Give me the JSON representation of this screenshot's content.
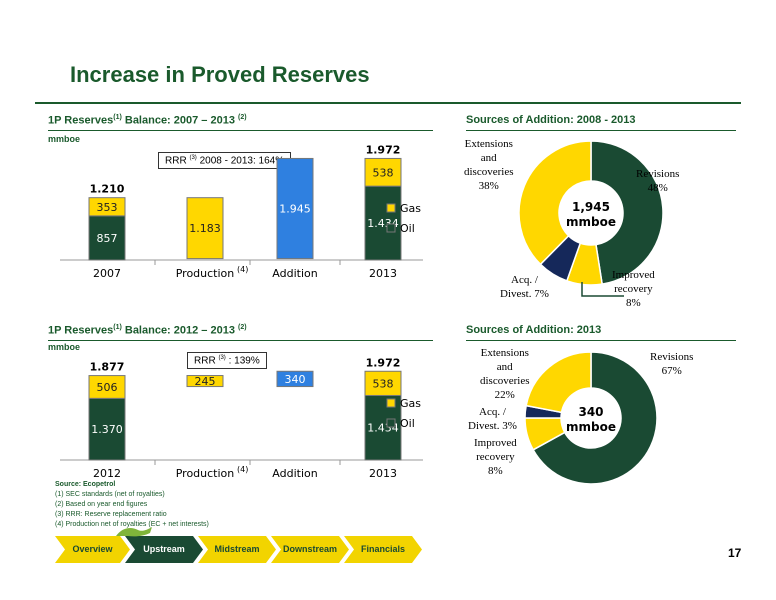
{
  "page": {
    "title": "Increase in Proved Reserves",
    "page_number": "17"
  },
  "section1": {
    "title": "1P Reserves",
    "title_sup1": "(1)",
    "title_mid": " Balance: 2007 – 2013 ",
    "title_sup2": "(2)",
    "unit": "mmboe",
    "rrr_prefix": "RRR",
    "rrr_sup": "(3)",
    "rrr_suffix": " 2008 - 2013: 164%"
  },
  "section2": {
    "title": "1P Reserves",
    "title_sup1": "(1)",
    "title_mid": " Balance: 2012 – 2013 ",
    "title_sup2": "(2)",
    "unit": "mmboe",
    "rrr_prefix": "RRR",
    "rrr_sup": "(3)",
    "rrr_suffix": " : 139%"
  },
  "section3": {
    "title": "Sources of Addition: 2008 - 2013"
  },
  "section4": {
    "title": "Sources of Addition: 2013"
  },
  "notes": {
    "source": "Source: Ecopetrol",
    "items": [
      "(1)    SEC standards (net of royalties)",
      "(2)    Based on year end figures",
      "(3)    RRR: Reserve replacement ratio",
      "(4)    Production net of royalties (EC + net interests)"
    ]
  },
  "nav": {
    "items": [
      "Overview",
      "Upstream",
      "Midstream",
      "Downstream",
      "Financials"
    ],
    "active": "Upstream"
  },
  "colors": {
    "oil": "#1a4a33",
    "gas": "#ffd700",
    "addition": "#2f80e0",
    "acq": "#15285a",
    "title_green": "#1a5a2c",
    "nav_inactive": "#f2d400",
    "nav_active": "#1a4a33"
  },
  "chart_data": [
    {
      "type": "bar",
      "title": "1P Reserves Balance: 2007 – 2013",
      "ylabel": "mmboe",
      "categories": [
        "2007",
        "Production",
        "Addition",
        "2013"
      ],
      "category_sup": [
        "",
        "(4)",
        "",
        ""
      ],
      "series": [
        {
          "name": "Oil",
          "values": [
            857,
            null,
            null,
            1434
          ],
          "labels": [
            "857",
            "",
            "",
            "1.434"
          ]
        },
        {
          "name": "Gas",
          "values": [
            353,
            null,
            null,
            538
          ],
          "labels": [
            "353",
            "",
            "",
            "538"
          ]
        }
      ],
      "waterfall": [
        {
          "category": "Production",
          "value": 1183,
          "label": "1.183",
          "bottom": 27,
          "top": 1210
        },
        {
          "category": "Addition",
          "value": 1945,
          "label": "1.945",
          "bottom": 27,
          "top": 1972
        }
      ],
      "totals": [
        "1.210",
        "",
        "",
        "1.972"
      ],
      "ylim": [
        0,
        2000
      ],
      "legend": [
        "Gas",
        "Oil"
      ],
      "legend_position": "right"
    },
    {
      "type": "bar",
      "title": "1P Reserves Balance: 2012 – 2013",
      "ylabel": "mmboe",
      "categories": [
        "2012",
        "Production",
        "Addition",
        "2013"
      ],
      "category_sup": [
        "",
        "(4)",
        "",
        ""
      ],
      "series": [
        {
          "name": "Oil",
          "values": [
            1370,
            null,
            null,
            1434
          ],
          "labels": [
            "1.370",
            "",
            "",
            "1.434"
          ]
        },
        {
          "name": "Gas",
          "values": [
            506,
            null,
            null,
            538
          ],
          "labels": [
            "506",
            "",
            "",
            "538"
          ]
        }
      ],
      "waterfall": [
        {
          "category": "Production",
          "value": 245,
          "label": "245",
          "bottom": 1632,
          "top": 1877
        },
        {
          "category": "Addition",
          "value": 340,
          "label": "340",
          "bottom": 1632,
          "top": 1972
        }
      ],
      "totals": [
        "1.877",
        "",
        "",
        "1.972"
      ],
      "ylim": [
        0,
        2000
      ],
      "legend": [
        "Gas",
        "Oil"
      ],
      "legend_position": "right"
    },
    {
      "type": "pie",
      "title": "Sources of Addition: 2008 - 2013",
      "center_label": [
        "1,945",
        "mmboe"
      ],
      "slices": [
        {
          "name": "Revisions",
          "value": 48,
          "label": "48%",
          "color": "#1a4a33"
        },
        {
          "name": "Improved recovery",
          "value": 8,
          "label": "8%",
          "color": "#ffd700"
        },
        {
          "name": "Acq. / Divest.",
          "value": 7,
          "label": "7%",
          "color": "#15285a"
        },
        {
          "name": "Extensions and discoveries",
          "value": 38,
          "label": "38%",
          "color": "#ffd700"
        }
      ],
      "labels": {
        "revisions": [
          "Revisions",
          "48%"
        ],
        "improved": [
          "Improved",
          "recovery",
          "8%"
        ],
        "acq": [
          "Acq. /",
          "Divest. 7%"
        ],
        "ext": [
          "Extensions",
          "and",
          "discoveries",
          "38%"
        ]
      }
    },
    {
      "type": "pie",
      "title": "Sources of Addition: 2013",
      "center_label": [
        "340",
        "mmboe"
      ],
      "slices": [
        {
          "name": "Revisions",
          "value": 67,
          "label": "67%",
          "color": "#1a4a33"
        },
        {
          "name": "Improved recovery",
          "value": 8,
          "label": "8%",
          "color": "#ffd700"
        },
        {
          "name": "Acq. / Divest.",
          "value": 3,
          "label": "3%",
          "color": "#15285a"
        },
        {
          "name": "Extensions and discoveries",
          "value": 22,
          "label": "22%",
          "color": "#ffd700"
        }
      ],
      "labels": {
        "revisions": [
          "Revisions",
          "67%"
        ],
        "improved": [
          "Improved",
          "recovery",
          "8%"
        ],
        "acq": [
          "Acq. /",
          "Divest.  3%"
        ],
        "ext": [
          "Extensions",
          "and",
          "discoveries",
          "22%"
        ]
      }
    }
  ]
}
